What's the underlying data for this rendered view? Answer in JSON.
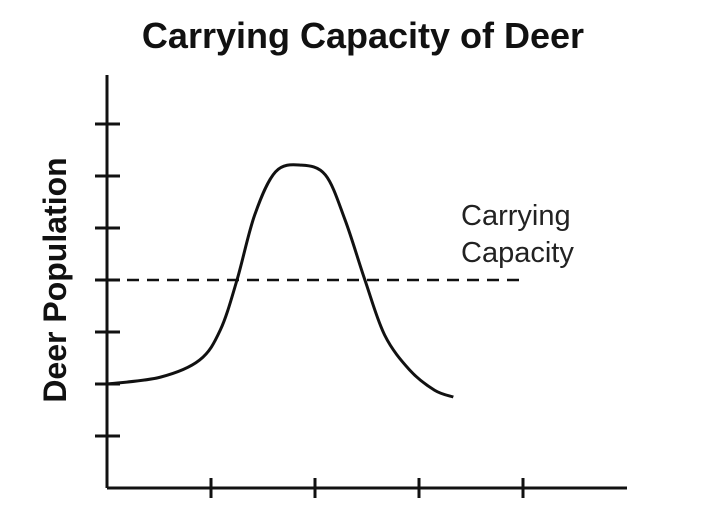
{
  "chart_data": {
    "type": "line",
    "title": "Carrying Capacity of Deer",
    "y_label": "Deer Population",
    "annotation": "Carrying Capacity",
    "x": [
      0,
      0.51,
      0.89,
      1.09,
      1.25,
      1.42,
      1.62,
      1.86,
      2.1,
      2.29,
      2.48,
      2.67,
      2.91,
      3.15,
      3.33
    ],
    "values": [
      2,
      2.13,
      2.46,
      3.04,
      4,
      5.25,
      6.08,
      6.21,
      6.02,
      5.15,
      4,
      2.94,
      2.27,
      1.88,
      1.75
    ],
    "color": "#111111",
    "reference_line": {
      "y": 4,
      "x": [
        0,
        4
      ],
      "style": "dashed"
    },
    "xlim": [
      0,
      5
    ],
    "xticks": [
      1,
      2,
      3,
      4
    ],
    "ylim": [
      0,
      8
    ],
    "yticks": [
      1,
      2,
      3,
      4,
      5,
      6,
      7
    ]
  }
}
